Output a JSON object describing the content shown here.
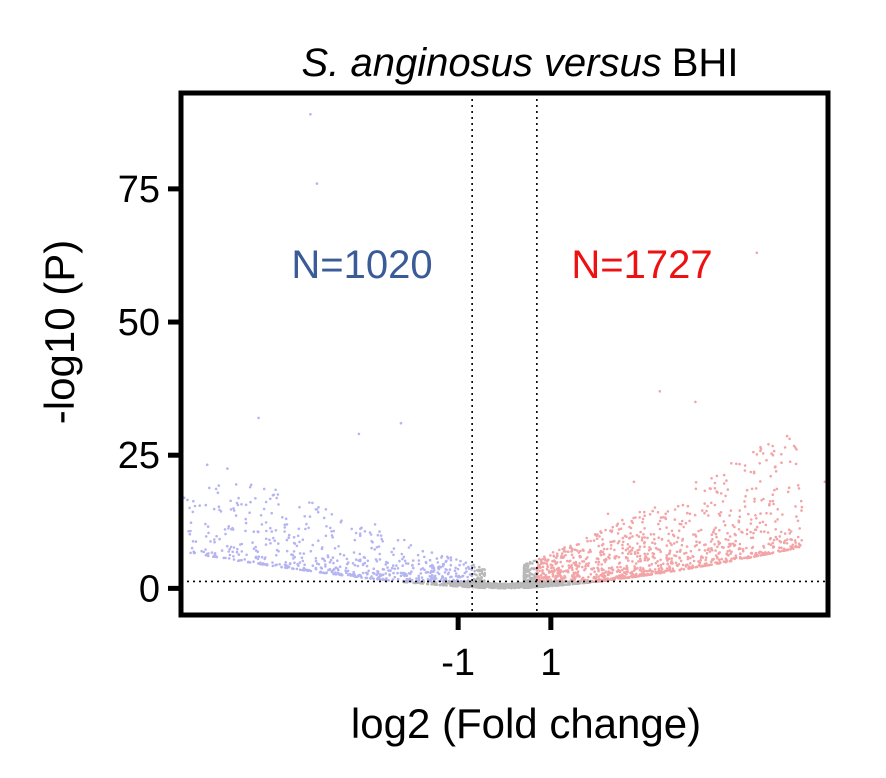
{
  "chart_data": {
    "type": "scatter",
    "title": {
      "italic_part": "S. anginosus versus",
      "plain_part": "BHI"
    },
    "xlabel": "log2 (Fold change)",
    "ylabel": "-log10 (P)",
    "x_ticks": [
      {
        "value": -1,
        "label": "-1"
      },
      {
        "value": 1,
        "label": "1"
      }
    ],
    "y_ticks": [
      {
        "value": 0,
        "label": "0"
      },
      {
        "value": 25,
        "label": "25"
      },
      {
        "value": 50,
        "label": "50"
      },
      {
        "value": 75,
        "label": "75"
      }
    ],
    "xlim": [
      -10,
      10
    ],
    "ylim": [
      -5,
      93
    ],
    "fold_change_thresholds": [
      -1,
      1
    ],
    "p_threshold": 1.3,
    "counts": {
      "down": {
        "label": "N=1020",
        "value": 1020,
        "color": "#3a5a98"
      },
      "up": {
        "label": "N=1727",
        "value": 1727,
        "color": "#ee1111"
      }
    },
    "colors": {
      "down_points": "#b4b4f2",
      "up_points": "#f2a4a6",
      "ns_points": "#b8b8b8"
    },
    "grid": false,
    "notable_points": [
      {
        "x": -6.0,
        "y": 89.0
      },
      {
        "x": -5.8,
        "y": 76.0
      },
      {
        "x": 7.8,
        "y": 63.0
      },
      {
        "x": -7.6,
        "y": 32.0
      },
      {
        "x": 4.8,
        "y": 37.0
      },
      {
        "x": 5.9,
        "y": 35.0
      },
      {
        "x": -4.5,
        "y": 29.0
      },
      {
        "x": -3.2,
        "y": 31.0
      },
      {
        "x": 4.0,
        "y": 20.0
      },
      {
        "x": 8.3,
        "y": 25.0
      },
      {
        "x": -9.9,
        "y": 17.0
      },
      {
        "x": 9.9,
        "y": 20.0
      },
      {
        "x": 8.8,
        "y": 11.0
      },
      {
        "x": -8.0,
        "y": 13.0
      },
      {
        "x": 5.5,
        "y": 9.0
      },
      {
        "x": -6.5,
        "y": 8.5
      },
      {
        "x": 3.2,
        "y": 14.0
      },
      {
        "x": -4.0,
        "y": 12.0
      }
    ]
  }
}
